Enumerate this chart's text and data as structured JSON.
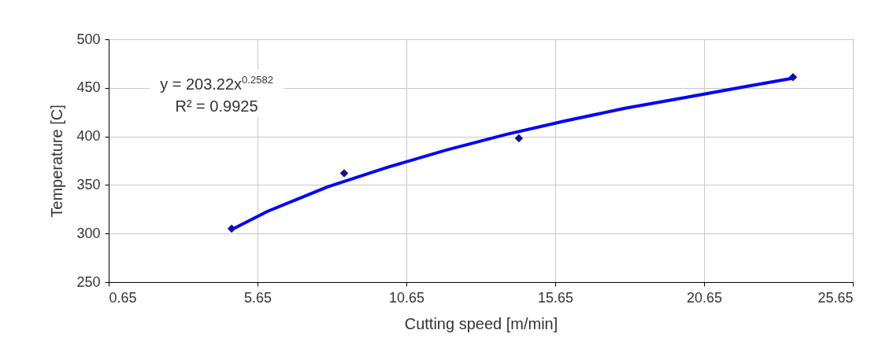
{
  "chart_data": {
    "type": "scatter",
    "xlabel": "Cutting speed [m/min]",
    "ylabel": "Temperature  [C]",
    "xlim": [
      0.65,
      25.65
    ],
    "xticks": [
      0.65,
      5.65,
      10.65,
      15.65,
      20.65,
      25.65
    ],
    "ylim": [
      250,
      500
    ],
    "yticks": [
      250,
      300,
      350,
      400,
      450,
      500
    ],
    "grid": true,
    "marker": "diamond",
    "annotations": [
      "y = 203.22x$^{0.2582}$",
      "R² = 0.9925"
    ],
    "series": [
      {
        "color": "#10108a",
        "x": [
          4.78,
          8.56,
          14.43,
          23.64
        ],
        "values": [
          305,
          362,
          398,
          461
        ]
      },
      {
        "type": "line",
        "marker": "none",
        "color": "#0000ff",
        "line_style": "solid",
        "x": [
          4.78,
          6,
          8,
          10,
          12,
          14,
          16,
          18,
          20,
          22,
          23.64
        ],
        "values": [
          304,
          323,
          348,
          368,
          386,
          402,
          416,
          429,
          440,
          451,
          460
        ]
      }
    ]
  }
}
